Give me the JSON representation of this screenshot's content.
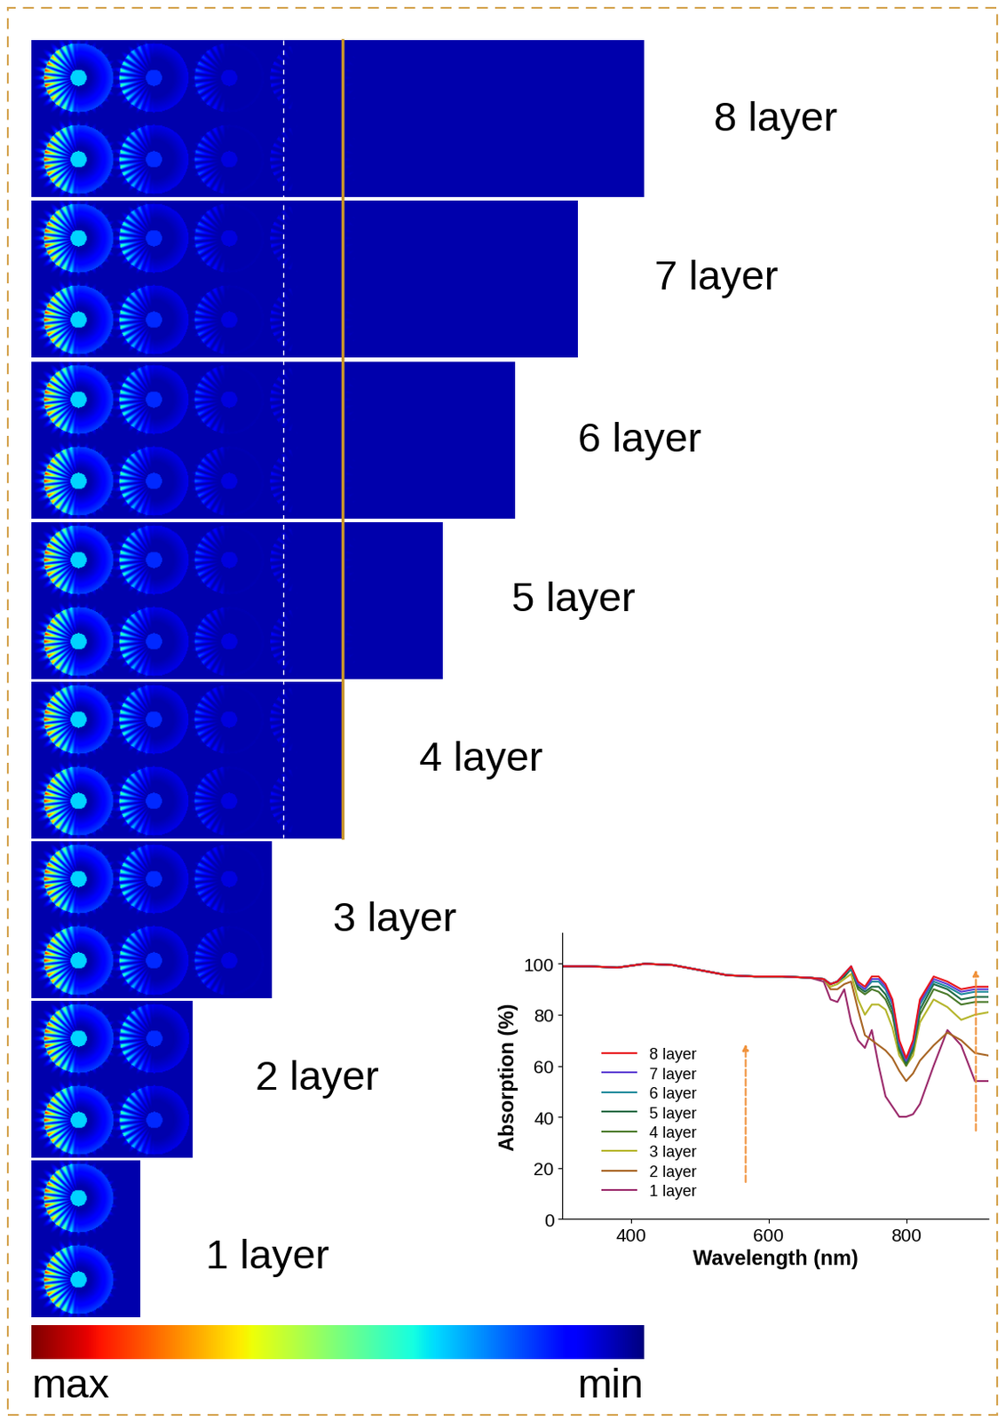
{
  "field_maps": {
    "labels": [
      "1 layer",
      "2 layer",
      "3 layer",
      "4 layer",
      "5 layer",
      "6 layer",
      "7 layer",
      "8 layer"
    ],
    "colorbar": {
      "max_label": "max",
      "min_label": "min"
    }
  },
  "chart_data": {
    "type": "line",
    "xlabel": "Wavelength (nm)",
    "ylabel": "Absorption (%)",
    "xlim": [
      300,
      920
    ],
    "xticks": [
      400,
      600,
      800
    ],
    "ylim": [
      0,
      112
    ],
    "yticks": [
      0,
      20,
      40,
      60,
      80,
      100
    ],
    "legend": "lower left",
    "x": [
      300,
      340,
      380,
      420,
      460,
      500,
      540,
      580,
      620,
      660,
      680,
      690,
      700,
      710,
      720,
      730,
      740,
      750,
      760,
      770,
      780,
      790,
      800,
      810,
      820,
      840,
      860,
      880,
      900,
      920
    ],
    "series": [
      {
        "name": "8 layer",
        "color": "#e8151b",
        "values": [
          99,
          99,
          98.5,
          100,
          99.5,
          97.5,
          95.5,
          95,
          95,
          94.5,
          94,
          92,
          93,
          96,
          99,
          93,
          91,
          95,
          95,
          92,
          86,
          70,
          63,
          70,
          86,
          95,
          93,
          90,
          91,
          91
        ]
      },
      {
        "name": "7 layer",
        "color": "#5d3fd3",
        "values": [
          99,
          99,
          98.5,
          100,
          99.5,
          97.5,
          95.5,
          95,
          95,
          94.5,
          94,
          92,
          93,
          96,
          99,
          92,
          90,
          94,
          94,
          91,
          85,
          69,
          62,
          69,
          85,
          94,
          92,
          89,
          90,
          90
        ]
      },
      {
        "name": "6 layer",
        "color": "#1f8a9b",
        "values": [
          99,
          99,
          98.5,
          100,
          99.5,
          97.5,
          95.5,
          95,
          95,
          94.5,
          94,
          92,
          93,
          96,
          98,
          92,
          90,
          93,
          93,
          90,
          84,
          68,
          62,
          68,
          84,
          93,
          91,
          88,
          89,
          89
        ]
      },
      {
        "name": "5 layer",
        "color": "#1e6b45",
        "values": [
          99,
          99,
          98.5,
          100,
          99.5,
          97.5,
          95.5,
          95,
          95,
          94.5,
          94,
          92,
          93,
          95,
          98,
          91,
          89,
          91,
          91,
          88,
          82,
          67,
          61,
          67,
          82,
          92,
          90,
          86,
          87,
          87
        ]
      },
      {
        "name": "4 layer",
        "color": "#4a7a2a",
        "values": [
          99,
          99,
          98.5,
          100,
          99.5,
          97.5,
          95.5,
          95,
          95,
          94.5,
          94,
          92,
          93,
          95,
          98,
          90,
          88,
          90,
          89,
          86,
          80,
          66,
          60,
          66,
          80,
          90,
          88,
          84,
          85,
          85
        ]
      },
      {
        "name": "3 layer",
        "color": "#b5b52a",
        "values": [
          99,
          99,
          98.5,
          100,
          99.5,
          97.5,
          95.5,
          95,
          95,
          94.5,
          94,
          91,
          92,
          94,
          96,
          86,
          80,
          84,
          84,
          82,
          75,
          64,
          60,
          64,
          77,
          86,
          83,
          78,
          80,
          81
        ]
      },
      {
        "name": "2 layer",
        "color": "#a86523",
        "values": [
          99,
          99,
          98.5,
          100,
          99.5,
          97.5,
          95.5,
          95,
          95,
          94.5,
          94,
          90,
          90,
          92,
          93,
          82,
          72,
          70,
          68,
          66,
          63,
          58,
          54,
          57,
          62,
          68,
          73,
          70,
          65,
          64
        ]
      },
      {
        "name": "1 layer",
        "color": "#9b2a6b",
        "values": [
          99,
          99,
          98.5,
          100,
          99.5,
          97.5,
          95.5,
          95,
          95,
          94.5,
          93,
          86,
          85,
          90,
          77,
          70,
          67,
          74,
          60,
          48,
          44,
          40,
          40,
          41,
          45,
          60,
          74,
          68,
          54,
          54
        ]
      }
    ]
  }
}
